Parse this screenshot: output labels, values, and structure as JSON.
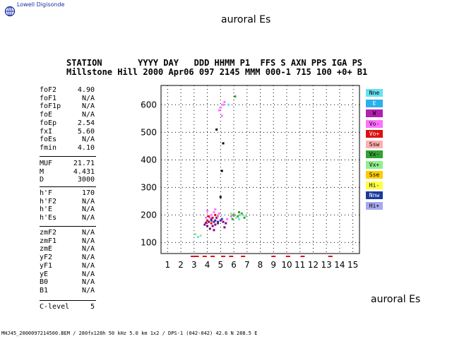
{
  "header": {
    "logo_text": "Lowell Digisonde",
    "title_top": "auroral Es",
    "title_bottom": "auroral Es",
    "station_keys": "STATION       YYYY DAY   DDD HHMM P1  FFS S AXN PPS IGA PS",
    "station_vals": "Millstone Hill 2000 Apr06 097 2145 MMM 000-1 715 100 +0+ B1"
  },
  "params": {
    "group1": [
      {
        "name": "foF2",
        "value": "4.90"
      },
      {
        "name": "foF1",
        "value": "N/A"
      },
      {
        "name": "foF1p",
        "value": "N/A"
      },
      {
        "name": "foE",
        "value": "N/A"
      },
      {
        "name": "foEp",
        "value": "2.54"
      },
      {
        "name": "fxI",
        "value": "5.60"
      },
      {
        "name": "foEs",
        "value": "N/A"
      },
      {
        "name": "fmin",
        "value": "4.10"
      }
    ],
    "group2": [
      {
        "name": "MUF",
        "value": "21.71"
      },
      {
        "name": "M",
        "value": "4.431"
      },
      {
        "name": "D",
        "value": "3000"
      }
    ],
    "group3": [
      {
        "name": "h'F",
        "value": "170"
      },
      {
        "name": "h'F2",
        "value": "N/A"
      },
      {
        "name": "h'E",
        "value": "N/A"
      },
      {
        "name": "h'Es",
        "value": "N/A"
      }
    ],
    "group4": [
      {
        "name": "zmF2",
        "value": "N/A"
      },
      {
        "name": "zmF1",
        "value": "N/A"
      },
      {
        "name": "zmE",
        "value": "N/A"
      },
      {
        "name": "yF2",
        "value": "N/A"
      },
      {
        "name": "yF1",
        "value": "N/A"
      },
      {
        "name": "yE",
        "value": "N/A"
      },
      {
        "name": "B0",
        "value": "N/A"
      },
      {
        "name": "B1",
        "value": "N/A"
      }
    ],
    "group5": [
      {
        "name": "C-level",
        "value": "5"
      }
    ]
  },
  "legend": [
    {
      "label": "Nne",
      "color": "#66e0f0",
      "text": "#000"
    },
    {
      "label": "E",
      "color": "#2ab0ee",
      "text": "#fff"
    },
    {
      "label": "W",
      "color": "#b020b0",
      "text": "#000"
    },
    {
      "label": "Vo-",
      "color": "#ff70ff",
      "text": "#000"
    },
    {
      "label": "Vo+",
      "color": "#e01010",
      "text": "#fff"
    },
    {
      "label": "Ssw",
      "color": "#ffb0b0",
      "text": "#000"
    },
    {
      "label": "Vx-",
      "color": "#30a030",
      "text": "#000"
    },
    {
      "label": "Vx+",
      "color": "#90f090",
      "text": "#000"
    },
    {
      "label": "Sse",
      "color": "#ffcc00",
      "text": "#000"
    },
    {
      "label": "Hi-",
      "color": "#ffff44",
      "text": "#000"
    },
    {
      "label": "Nnw",
      "color": "#1a3a9a",
      "text": "#fff"
    },
    {
      "label": "Hi+",
      "color": "#a8a8f0",
      "text": "#000"
    }
  ],
  "footer": "MHJ45_2000097214500.BEM / 280fx128h 50 kHz 5.0 km 1x2 / DPS-1 (042-042) 42.6 N 288.5 E",
  "chart_data": {
    "type": "scatter",
    "xlabel": "",
    "ylabel": "",
    "xlim": [
      0.5,
      15.5
    ],
    "ylim": [
      60,
      670
    ],
    "x_ticks": [
      1,
      2,
      3,
      4,
      5,
      6,
      7,
      8,
      9,
      10,
      11,
      12,
      13,
      14,
      15
    ],
    "y_ticks": [
      100,
      200,
      300,
      400,
      500,
      600
    ],
    "grid": true,
    "series": [
      {
        "color": "#800080",
        "points": [
          [
            4.2,
            150
          ],
          [
            4.4,
            160
          ],
          [
            4.5,
            175
          ],
          [
            4.6,
            165
          ],
          [
            4.8,
            170
          ],
          [
            5.0,
            180
          ],
          [
            5.2,
            175
          ],
          [
            5.4,
            170
          ],
          [
            4.1,
            175
          ],
          [
            4.3,
            185
          ],
          [
            3.9,
            172
          ],
          [
            4.7,
            190
          ],
          [
            5.3,
            155
          ],
          [
            4.0,
            160
          ],
          [
            4.5,
            145
          ],
          [
            3.8,
            165
          ]
        ]
      },
      {
        "color": "#ff70ff",
        "points": [
          [
            4.3,
            200
          ],
          [
            4.5,
            210
          ],
          [
            4.6,
            220
          ],
          [
            5.0,
            590
          ],
          [
            5.2,
            600
          ],
          [
            4.9,
            580
          ],
          [
            5.1,
            560
          ],
          [
            4.2,
            190
          ],
          [
            4.9,
            205
          ],
          [
            3.9,
            190
          ],
          [
            5.5,
            185
          ],
          [
            4.0,
            215
          ],
          [
            5.8,
            195
          ],
          [
            5.3,
            610
          ],
          [
            4.8,
            195
          ]
        ]
      },
      {
        "color": "#e01010",
        "points": [
          [
            4.1,
            195
          ],
          [
            4.3,
            170
          ],
          [
            4.6,
            200
          ],
          [
            4.4,
            190
          ],
          [
            4.0,
            180
          ]
        ]
      },
      {
        "color": "#30a030",
        "points": [
          [
            6.0,
            200
          ],
          [
            6.3,
            195
          ],
          [
            6.6,
            205
          ],
          [
            6.1,
            630
          ],
          [
            5.9,
            185
          ],
          [
            6.8,
            190
          ],
          [
            6.4,
            210
          ]
        ]
      },
      {
        "color": "#90f090",
        "points": [
          [
            6.2,
            190
          ],
          [
            6.5,
            200
          ],
          [
            5.8,
            205
          ],
          [
            3.5,
            125
          ],
          [
            3.1,
            130
          ],
          [
            6.9,
            195
          ]
        ]
      },
      {
        "color": "#66e0f0",
        "points": [
          [
            6.4,
            185
          ],
          [
            6.7,
            200
          ],
          [
            3.3,
            120
          ],
          [
            5.6,
            600
          ]
        ]
      },
      {
        "color": "#1a3a9a",
        "points": [
          [
            4.3,
            180
          ],
          [
            4.8,
            175
          ],
          [
            5.1,
            185
          ],
          [
            4.6,
            180
          ]
        ]
      },
      {
        "color": "#000000",
        "points": [
          [
            5.1,
            360
          ],
          [
            5.0,
            265
          ],
          [
            5.2,
            460
          ],
          [
            4.7,
            510
          ]
        ]
      }
    ],
    "markers_bottom": [
      2.9,
      3.2,
      3.8,
      4.4,
      5.2,
      5.8,
      6.7,
      9.0,
      10.1,
      11.2,
      13.3
    ]
  }
}
